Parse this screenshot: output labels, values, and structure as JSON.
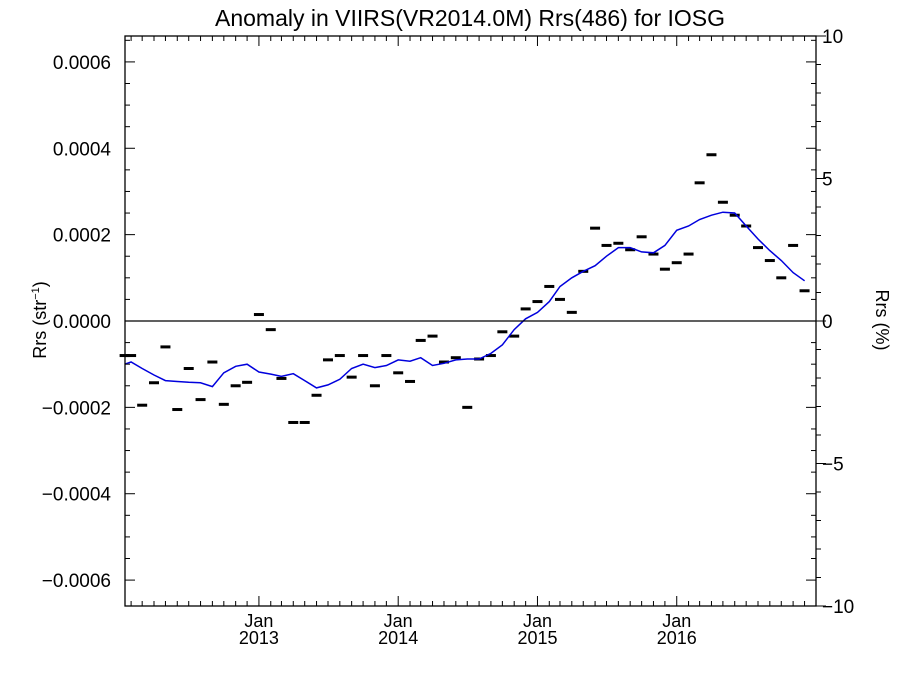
{
  "chart_data": {
    "type": "line",
    "title": "Anomaly in VIIRS(VR2014.0M) Rrs(486) for IOSG",
    "ylabel": "Rrs (str",
    "ylabel_sup": "−1",
    "ylabel_suffix": ")",
    "y2label": "Rrs (%)",
    "ylim": [
      -0.00066,
      0.00066
    ],
    "y2lim": [
      -10,
      10
    ],
    "xlim": [
      "2012-01-16",
      "2016-12-31"
    ],
    "grid": false,
    "legend": "none",
    "zero_line": 0,
    "y_ticks": [
      {
        "value": -0.0006,
        "label": "−0.0006"
      },
      {
        "value": -0.0004,
        "label": "−0.0004"
      },
      {
        "value": -0.0002,
        "label": "−0.0002"
      },
      {
        "value": 0.0,
        "label": "0.0000"
      },
      {
        "value": 0.0002,
        "label": "0.0002"
      },
      {
        "value": 0.0004,
        "label": "0.0004"
      },
      {
        "value": 0.0006,
        "label": "0.0006"
      }
    ],
    "y2_ticks": [
      {
        "value": -10,
        "label": "−10"
      },
      {
        "value": -5,
        "label": "−5"
      },
      {
        "value": 0,
        "label": "0"
      },
      {
        "value": 5,
        "label": "5"
      },
      {
        "value": 10,
        "label": "10"
      }
    ],
    "x_ticks": [
      {
        "date": "2013-01-01",
        "month": "Jan",
        "year": "2013"
      },
      {
        "date": "2014-01-01",
        "month": "Jan",
        "year": "2014"
      },
      {
        "date": "2015-01-01",
        "month": "Jan",
        "year": "2015"
      },
      {
        "date": "2016-01-01",
        "month": "Jan",
        "year": "2016"
      }
    ],
    "series": [
      {
        "kind": "points",
        "color": "#000000",
        "points": [
          {
            "x": "2012-01-15",
            "y": -8e-05
          },
          {
            "x": "2012-02-01",
            "y": -8e-05
          },
          {
            "x": "2012-03-01",
            "y": -0.000195
          },
          {
            "x": "2012-04-01",
            "y": -0.000143
          },
          {
            "x": "2012-05-01",
            "y": -6e-05
          },
          {
            "x": "2012-06-01",
            "y": -0.000205
          },
          {
            "x": "2012-07-01",
            "y": -0.00011
          },
          {
            "x": "2012-08-01",
            "y": -0.000182
          },
          {
            "x": "2012-09-01",
            "y": -9.5e-05
          },
          {
            "x": "2012-10-01",
            "y": -0.000193
          },
          {
            "x": "2012-11-01",
            "y": -0.00015
          },
          {
            "x": "2012-12-01",
            "y": -0.000142
          },
          {
            "x": "2013-01-01",
            "y": 1.5e-05
          },
          {
            "x": "2013-02-01",
            "y": -2e-05
          },
          {
            "x": "2013-03-01",
            "y": -0.000133
          },
          {
            "x": "2013-04-01",
            "y": -0.000235
          },
          {
            "x": "2013-05-01",
            "y": -0.000235
          },
          {
            "x": "2013-06-01",
            "y": -0.000172
          },
          {
            "x": "2013-07-01",
            "y": -9e-05
          },
          {
            "x": "2013-08-01",
            "y": -8e-05
          },
          {
            "x": "2013-09-01",
            "y": -0.00013
          },
          {
            "x": "2013-10-01",
            "y": -8e-05
          },
          {
            "x": "2013-11-01",
            "y": -0.00015
          },
          {
            "x": "2013-12-01",
            "y": -8e-05
          },
          {
            "x": "2014-01-01",
            "y": -0.00012
          },
          {
            "x": "2014-02-01",
            "y": -0.00014
          },
          {
            "x": "2014-03-01",
            "y": -4.5e-05
          },
          {
            "x": "2014-04-01",
            "y": -3.5e-05
          },
          {
            "x": "2014-05-01",
            "y": -9.5e-05
          },
          {
            "x": "2014-06-01",
            "y": -8.5e-05
          },
          {
            "x": "2014-07-01",
            "y": -0.0002
          },
          {
            "x": "2014-08-01",
            "y": -8.8e-05
          },
          {
            "x": "2014-09-01",
            "y": -8e-05
          },
          {
            "x": "2014-10-01",
            "y": -2.5e-05
          },
          {
            "x": "2014-11-01",
            "y": -3.5e-05
          },
          {
            "x": "2014-12-01",
            "y": 2.8e-05
          },
          {
            "x": "2015-01-01",
            "y": 4.5e-05
          },
          {
            "x": "2015-02-01",
            "y": 8e-05
          },
          {
            "x": "2015-03-01",
            "y": 5e-05
          },
          {
            "x": "2015-04-01",
            "y": 2e-05
          },
          {
            "x": "2015-05-01",
            "y": 0.000115
          },
          {
            "x": "2015-06-01",
            "y": 0.000215
          },
          {
            "x": "2015-07-01",
            "y": 0.000175
          },
          {
            "x": "2015-08-01",
            "y": 0.00018
          },
          {
            "x": "2015-09-01",
            "y": 0.000165
          },
          {
            "x": "2015-10-01",
            "y": 0.000195
          },
          {
            "x": "2015-11-01",
            "y": 0.000155
          },
          {
            "x": "2015-12-01",
            "y": 0.00012
          },
          {
            "x": "2016-01-01",
            "y": 0.000135
          },
          {
            "x": "2016-02-01",
            "y": 0.000155
          },
          {
            "x": "2016-03-01",
            "y": 0.00032
          },
          {
            "x": "2016-04-01",
            "y": 0.000385
          },
          {
            "x": "2016-05-01",
            "y": 0.000275
          },
          {
            "x": "2016-06-01",
            "y": 0.000245
          },
          {
            "x": "2016-07-01",
            "y": 0.00022
          },
          {
            "x": "2016-08-01",
            "y": 0.00017
          },
          {
            "x": "2016-09-01",
            "y": 0.00014
          },
          {
            "x": "2016-10-01",
            "y": 0.0001
          },
          {
            "x": "2016-11-01",
            "y": 0.000175
          },
          {
            "x": "2016-12-01",
            "y": 7e-05
          }
        ]
      },
      {
        "kind": "line",
        "color": "#0000dd",
        "points": [
          {
            "x": "2012-01-15",
            "y": -0.0001
          },
          {
            "x": "2012-02-01",
            "y": -9.5e-05
          },
          {
            "x": "2012-03-01",
            "y": -0.00011
          },
          {
            "x": "2012-04-01",
            "y": -0.000125
          },
          {
            "x": "2012-05-01",
            "y": -0.000138
          },
          {
            "x": "2012-06-01",
            "y": -0.00014
          },
          {
            "x": "2012-07-01",
            "y": -0.000142
          },
          {
            "x": "2012-08-01",
            "y": -0.000143
          },
          {
            "x": "2012-09-01",
            "y": -0.000152
          },
          {
            "x": "2012-10-01",
            "y": -0.00012
          },
          {
            "x": "2012-11-01",
            "y": -0.000105
          },
          {
            "x": "2012-12-01",
            "y": -0.0001
          },
          {
            "x": "2013-01-01",
            "y": -0.000118
          },
          {
            "x": "2013-02-01",
            "y": -0.000123
          },
          {
            "x": "2013-03-01",
            "y": -0.000128
          },
          {
            "x": "2013-04-01",
            "y": -0.000122
          },
          {
            "x": "2013-05-01",
            "y": -0.000138
          },
          {
            "x": "2013-06-01",
            "y": -0.000155
          },
          {
            "x": "2013-07-01",
            "y": -0.000148
          },
          {
            "x": "2013-08-01",
            "y": -0.000135
          },
          {
            "x": "2013-09-01",
            "y": -0.00011
          },
          {
            "x": "2013-10-01",
            "y": -0.0001
          },
          {
            "x": "2013-11-01",
            "y": -0.000108
          },
          {
            "x": "2013-12-01",
            "y": -0.000103
          },
          {
            "x": "2014-01-01",
            "y": -9e-05
          },
          {
            "x": "2014-02-01",
            "y": -9.3e-05
          },
          {
            "x": "2014-03-01",
            "y": -8.5e-05
          },
          {
            "x": "2014-04-01",
            "y": -0.000103
          },
          {
            "x": "2014-05-01",
            "y": -9.8e-05
          },
          {
            "x": "2014-06-01",
            "y": -9e-05
          },
          {
            "x": "2014-07-01",
            "y": -8.8e-05
          },
          {
            "x": "2014-08-01",
            "y": -8.8e-05
          },
          {
            "x": "2014-09-01",
            "y": -7.5e-05
          },
          {
            "x": "2014-10-01",
            "y": -5.5e-05
          },
          {
            "x": "2014-11-01",
            "y": -2e-05
          },
          {
            "x": "2014-12-01",
            "y": 5e-06
          },
          {
            "x": "2015-01-01",
            "y": 2e-05
          },
          {
            "x": "2015-02-01",
            "y": 4.5e-05
          },
          {
            "x": "2015-03-01",
            "y": 8e-05
          },
          {
            "x": "2015-04-01",
            "y": 0.0001
          },
          {
            "x": "2015-05-01",
            "y": 0.000115
          },
          {
            "x": "2015-06-01",
            "y": 0.000128
          },
          {
            "x": "2015-07-01",
            "y": 0.00015
          },
          {
            "x": "2015-08-01",
            "y": 0.00017
          },
          {
            "x": "2015-09-01",
            "y": 0.00017
          },
          {
            "x": "2015-10-01",
            "y": 0.00016
          },
          {
            "x": "2015-11-01",
            "y": 0.000158
          },
          {
            "x": "2015-12-01",
            "y": 0.000175
          },
          {
            "x": "2016-01-01",
            "y": 0.00021
          },
          {
            "x": "2016-02-01",
            "y": 0.00022
          },
          {
            "x": "2016-03-01",
            "y": 0.000235
          },
          {
            "x": "2016-04-01",
            "y": 0.000245
          },
          {
            "x": "2016-05-01",
            "y": 0.000252
          },
          {
            "x": "2016-06-01",
            "y": 0.00025
          },
          {
            "x": "2016-07-01",
            "y": 0.00022
          },
          {
            "x": "2016-08-01",
            "y": 0.00019
          },
          {
            "x": "2016-09-01",
            "y": 0.000163
          },
          {
            "x": "2016-10-01",
            "y": 0.00014
          },
          {
            "x": "2016-11-01",
            "y": 0.000112
          },
          {
            "x": "2016-12-01",
            "y": 9.3e-05
          }
        ]
      }
    ]
  }
}
